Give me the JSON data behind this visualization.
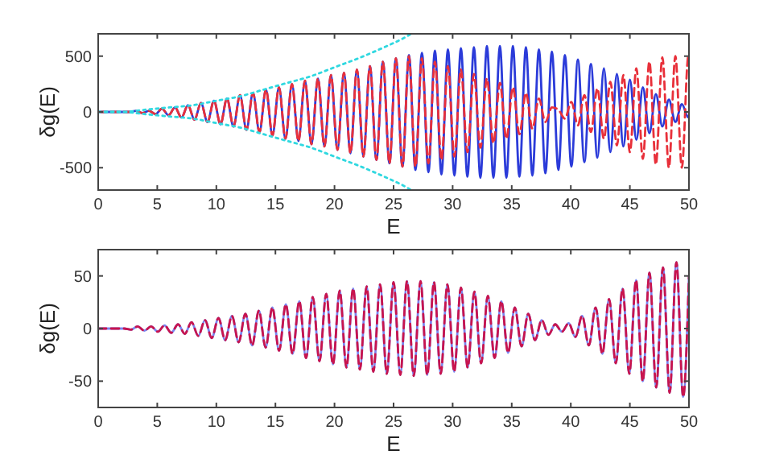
{
  "chart_data": [
    {
      "type": "line",
      "xlabel": "E",
      "ylabel": "δg(E)",
      "xlim": [
        0,
        50
      ],
      "ylim": [
        -700,
        700
      ],
      "xticks": [
        0,
        5,
        10,
        15,
        20,
        25,
        30,
        35,
        40,
        45,
        50
      ],
      "yticks": [
        -500,
        0,
        500
      ],
      "x": [
        0,
        1.0,
        1.55,
        2.1,
        2.65,
        3.2,
        3.75,
        4.3,
        4.85,
        5.4,
        5.95,
        6.5,
        7.05,
        7.6,
        8.15,
        8.7,
        9.25,
        9.8,
        10.35,
        10.9,
        11.45,
        12.0,
        12.55,
        13.1,
        13.65,
        14.2,
        14.75,
        15.3,
        15.85,
        16.4,
        16.95,
        17.5,
        18.05,
        18.6,
        19.15,
        19.7,
        20.25,
        20.8,
        21.35,
        21.9,
        22.45,
        23.0,
        23.55,
        24.1,
        24.65,
        25.2,
        25.75,
        26.3,
        26.85,
        27.4,
        27.95,
        28.5,
        29.05,
        29.6,
        30.15,
        30.7,
        31.25,
        31.8,
        32.35,
        32.9,
        33.45,
        34.0,
        34.55,
        35.1,
        35.65,
        36.2,
        36.75,
        37.3,
        37.85,
        38.4,
        38.95,
        39.5,
        40.05,
        40.6,
        41.15,
        41.7,
        42.25,
        42.8,
        43.35,
        43.9,
        44.45,
        45.0,
        45.55,
        46.1,
        46.65,
        47.2,
        47.75,
        48.3,
        48.85,
        49.4,
        49.95,
        50
      ],
      "series": [
        {
          "color": "#2b3bd9",
          "line_style": "solid",
          "values": [
            0,
            0,
            0,
            0,
            0,
            10,
            -10,
            10,
            -20,
            30,
            -30,
            40,
            -50,
            60,
            -70,
            80,
            -90,
            100,
            -110,
            120,
            -130,
            150,
            -160,
            170,
            -180,
            200,
            -210,
            220,
            -240,
            250,
            -260,
            280,
            -290,
            300,
            -310,
            330,
            -340,
            350,
            -370,
            380,
            -400,
            410,
            -430,
            450,
            -460,
            480,
            -490,
            510,
            -520,
            530,
            -540,
            550,
            -560,
            560,
            -570,
            570,
            -580,
            580,
            -590,
            590,
            -590,
            590,
            -590,
            590,
            -580,
            580,
            -570,
            560,
            -550,
            540,
            -520,
            510,
            -490,
            470,
            -450,
            430,
            -410,
            390,
            -360,
            340,
            -310,
            290,
            -250,
            220,
            -190,
            160,
            -130,
            110,
            -90,
            70,
            -50,
            -30
          ]
        },
        {
          "color": "#e8303a",
          "line_style": "dashed",
          "values": [
            0,
            0,
            0,
            0,
            0,
            10,
            -10,
            10,
            -20,
            30,
            -30,
            40,
            -50,
            60,
            -70,
            80,
            -90,
            100,
            -110,
            120,
            -130,
            150,
            -160,
            170,
            -180,
            200,
            -210,
            220,
            -240,
            250,
            -260,
            280,
            -290,
            300,
            -310,
            330,
            -340,
            350,
            -370,
            380,
            -400,
            410,
            -430,
            450,
            -460,
            480,
            -490,
            500,
            -490,
            480,
            -460,
            450,
            -430,
            410,
            -400,
            380,
            -360,
            340,
            -320,
            300,
            -280,
            260,
            -240,
            220,
            -200,
            170,
            -150,
            120,
            -90,
            40,
            20,
            -60,
            90,
            -120,
            150,
            -180,
            210,
            -240,
            270,
            -300,
            330,
            -360,
            390,
            -420,
            450,
            -470,
            490,
            -500,
            500,
            -500,
            500,
            480
          ]
        },
        {
          "color": "#30d8e0",
          "line_style": "dotted",
          "x": [
            0,
            2,
            4,
            6,
            8,
            10,
            12,
            14,
            16,
            18,
            20,
            22,
            24,
            26,
            26.5
          ],
          "values": [
            0,
            0,
            20,
            40,
            60,
            100,
            140,
            200,
            260,
            320,
            400,
            480,
            570,
            670,
            700
          ]
        },
        {
          "color": "#30d8e0",
          "line_style": "dotted",
          "x": [
            0,
            2,
            4,
            6,
            8,
            10,
            12,
            14,
            16,
            18,
            20,
            22,
            24,
            26,
            26.5
          ],
          "values": [
            0,
            0,
            -20,
            -40,
            -60,
            -100,
            -140,
            -200,
            -260,
            -320,
            -400,
            -480,
            -570,
            -670,
            -700
          ]
        }
      ]
    },
    {
      "type": "line",
      "xlabel": "E",
      "ylabel": "δg(E)",
      "xlim": [
        0,
        50
      ],
      "ylim": [
        -75,
        75
      ],
      "xticks": [
        0,
        5,
        10,
        15,
        20,
        25,
        30,
        35,
        40,
        45,
        50
      ],
      "yticks": [
        -50,
        0,
        50
      ],
      "x": [
        0,
        1.06,
        1.63,
        2.2,
        2.77,
        3.34,
        3.91,
        4.48,
        5.05,
        5.62,
        6.19,
        6.76,
        7.33,
        7.9,
        8.47,
        9.04,
        9.61,
        10.18,
        10.75,
        11.32,
        11.89,
        12.46,
        13.03,
        13.6,
        14.17,
        14.74,
        15.31,
        15.88,
        16.45,
        17.02,
        17.59,
        18.16,
        18.73,
        19.3,
        19.87,
        20.44,
        21.01,
        21.58,
        22.15,
        22.72,
        23.29,
        23.86,
        24.43,
        25.0,
        25.57,
        26.14,
        26.71,
        27.28,
        27.85,
        28.42,
        28.99,
        29.56,
        30.13,
        30.7,
        31.27,
        31.84,
        32.41,
        32.98,
        33.55,
        34.12,
        34.69,
        35.26,
        35.83,
        36.4,
        36.97,
        37.54,
        38.11,
        38.68,
        39.25,
        39.82,
        40.39,
        40.96,
        41.53,
        42.1,
        42.67,
        43.24,
        43.81,
        44.38,
        44.95,
        45.52,
        46.09,
        46.66,
        47.23,
        47.8,
        48.37,
        48.94,
        49.51,
        50
      ],
      "series": [
        {
          "color": "#7a86f0",
          "line_style": "solid",
          "values": [
            0,
            0,
            0,
            0,
            -1,
            2,
            -2,
            2,
            -3,
            3,
            -4,
            4,
            -5,
            6,
            -7,
            8,
            -9,
            10,
            -11,
            12,
            -13,
            14,
            -16,
            17,
            -18,
            20,
            -21,
            23,
            -24,
            26,
            -28,
            30,
            -31,
            33,
            -34,
            36,
            -37,
            38,
            -39,
            40,
            -41,
            42,
            -43,
            44,
            -44,
            45,
            -45,
            45,
            -44,
            44,
            -43,
            42,
            -41,
            39,
            -37,
            35,
            -33,
            31,
            -28,
            26,
            -23,
            20,
            -17,
            14,
            -11,
            8,
            -6,
            4,
            -3,
            5,
            -8,
            12,
            -16,
            20,
            -24,
            28,
            -33,
            38,
            -43,
            46,
            -50,
            53,
            -56,
            58,
            -61,
            63,
            -65,
            50
          ]
        },
        {
          "color": "#c8144e",
          "line_style": "dashed",
          "values": [
            0,
            0,
            0,
            0,
            -1,
            2,
            -2,
            2,
            -3,
            3,
            -4,
            4,
            -5,
            6,
            -7,
            8,
            -9,
            10,
            -11,
            12,
            -13,
            14,
            -16,
            17,
            -18,
            20,
            -21,
            23,
            -24,
            26,
            -28,
            30,
            -31,
            33,
            -34,
            36,
            -37,
            38,
            -39,
            40,
            -41,
            42,
            -43,
            44,
            -44,
            45,
            -45,
            45,
            -44,
            44,
            -43,
            42,
            -41,
            39,
            -37,
            35,
            -33,
            31,
            -28,
            26,
            -23,
            20,
            -17,
            14,
            -11,
            8,
            -6,
            4,
            -3,
            5,
            -8,
            12,
            -16,
            20,
            -24,
            28,
            -33,
            38,
            -43,
            46,
            -50,
            53,
            -56,
            58,
            -61,
            63,
            -65,
            50
          ]
        }
      ]
    }
  ]
}
